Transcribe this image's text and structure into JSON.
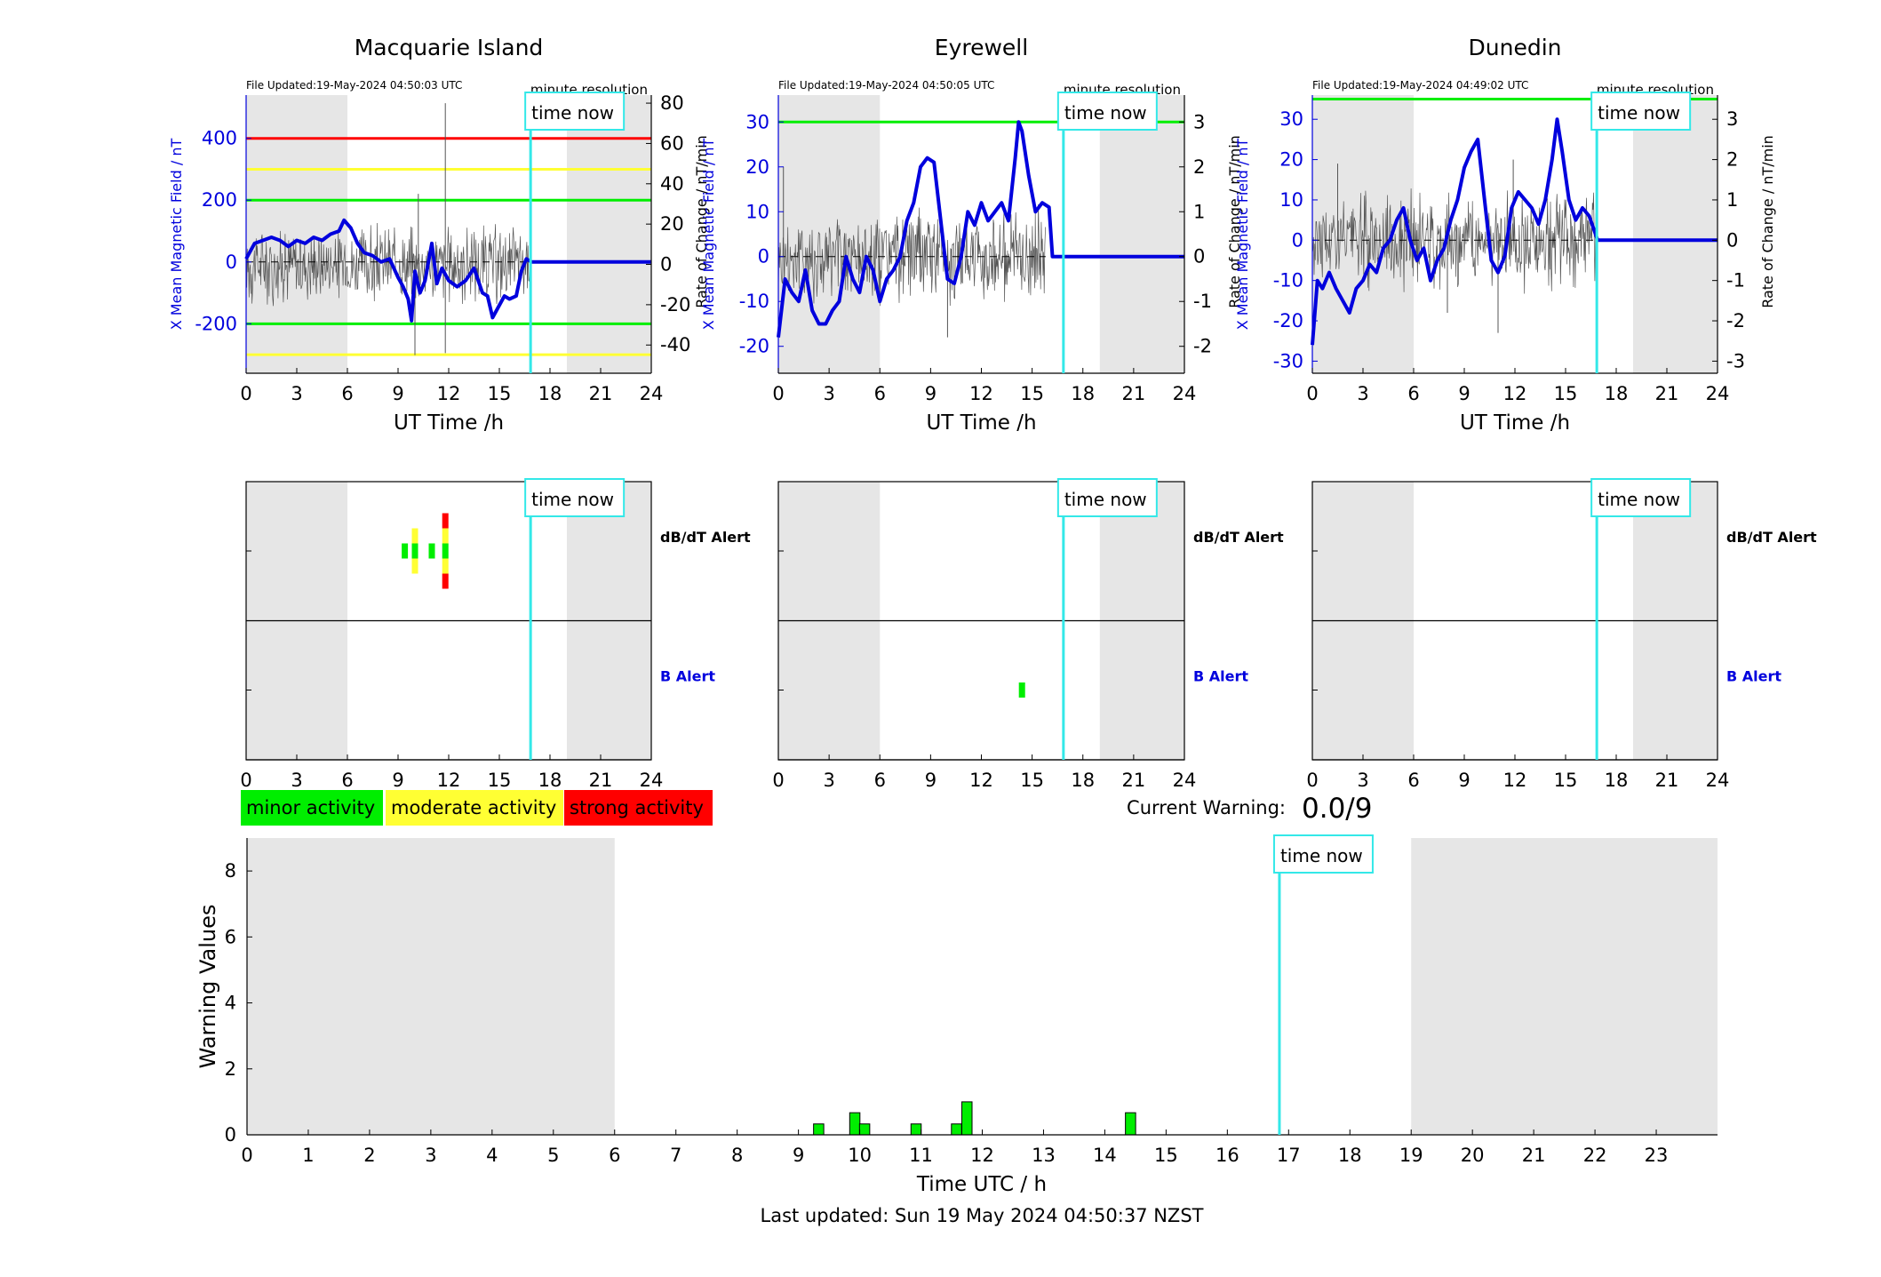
{
  "colors": {
    "blue": "#0000dd",
    "cyan": "#33e8e8",
    "green": "#00ee00",
    "yellow": "#ffff33",
    "red": "#ff0000",
    "night": "#e6e6e6",
    "derivative": "#555555"
  },
  "shared": {
    "file_updated_prefix": "File Updated:",
    "resolution_label": "minute resolution",
    "time_now_label": "time now",
    "ut_xlabel": "UT Time /h",
    "left_ylabel": "X Mean Magnetic Field / nT",
    "right_ylabel": "Rate of Change / nT/min",
    "dbdt_alert_label": "dB/dT Alert",
    "b_alert_label": "B Alert",
    "x_ticks": [
      0,
      3,
      6,
      9,
      12,
      15,
      18,
      21,
      24
    ],
    "night_bands": [
      [
        0,
        6
      ],
      [
        19,
        24
      ]
    ],
    "time_now_hour": 16.85
  },
  "legend": {
    "minor": "minor activity",
    "moderate": "moderate activity",
    "strong": "strong activity"
  },
  "current_warning": {
    "label": "Current Warning:",
    "value": "0.0/9"
  },
  "footer": {
    "last_updated": "Last updated: Sun 19 May 2024 04:50:37 NZST"
  },
  "chart_data": [
    {
      "type": "line",
      "title": "Macquarie Island",
      "file_updated": "19-May-2024 04:50:03 UTC",
      "xlabel": "UT Time /h",
      "ylabel": "X Mean Magnetic Field / nT",
      "ylabel_right": "Rate of Change / nT/min",
      "xlim": [
        0,
        24
      ],
      "ylim": [
        -360,
        540
      ],
      "yticks": [
        -200,
        0,
        200,
        400
      ],
      "ylim_right": [
        -54,
        84
      ],
      "yticks_right": [
        -40,
        -20,
        0,
        20,
        40,
        60,
        80
      ],
      "threshold_lines": [
        {
          "value": 400,
          "color": "red"
        },
        {
          "value": 300,
          "color": "yellow"
        },
        {
          "value": 200,
          "color": "green"
        },
        {
          "value": -200,
          "color": "green"
        },
        {
          "value": -300,
          "color": "yellow"
        }
      ],
      "x_field": {
        "x": [
          0,
          0.5,
          1,
          1.5,
          2,
          2.5,
          3,
          3.5,
          4,
          4.5,
          5,
          5.5,
          5.8,
          6.2,
          6.6,
          7,
          7.5,
          8,
          8.5,
          9,
          9.3,
          9.6,
          9.8,
          10,
          10.3,
          10.6,
          11,
          11.3,
          11.6,
          12,
          12.5,
          13,
          13.5,
          14,
          14.3,
          14.6,
          15,
          15.3,
          15.6,
          16,
          16.3,
          16.6,
          16.9,
          24
        ],
        "y": [
          10,
          60,
          70,
          80,
          70,
          50,
          70,
          60,
          80,
          70,
          90,
          100,
          135,
          110,
          60,
          30,
          20,
          0,
          10,
          -50,
          -80,
          -120,
          -190,
          -30,
          -100,
          -60,
          60,
          -70,
          -20,
          -60,
          -80,
          -60,
          -20,
          -100,
          -110,
          -180,
          -140,
          -110,
          -120,
          -110,
          -30,
          10,
          0,
          0
        ]
      },
      "rate_of_change": {
        "x": [
          0,
          16.9
        ],
        "y_band": [
          -15,
          15
        ],
        "spikes": [
          [
            10,
            -45
          ],
          [
            10.2,
            35
          ],
          [
            11.8,
            80
          ],
          [
            11.8,
            -44
          ]
        ]
      },
      "dbdt_alert": [
        {
          "hour": 9.4,
          "levels": [
            "green"
          ]
        },
        {
          "hour": 10.0,
          "levels": [
            "yellow",
            "green",
            "yellow"
          ]
        },
        {
          "hour": 11.0,
          "levels": [
            "green"
          ]
        },
        {
          "hour": 11.8,
          "levels": [
            "red",
            "yellow",
            "green",
            "yellow",
            "red"
          ]
        }
      ],
      "b_alert": []
    },
    {
      "type": "line",
      "title": "Eyrewell",
      "file_updated": "19-May-2024 04:50:05 UTC",
      "xlabel": "UT Time /h",
      "ylabel": "X Mean Magnetic Field / nT",
      "ylabel_right": "Rate of Change / nT/min",
      "xlim": [
        0,
        24
      ],
      "ylim": [
        -26,
        36
      ],
      "yticks": [
        -20,
        -10,
        0,
        10,
        20,
        30
      ],
      "ylim_right": [
        -2.6,
        3.6
      ],
      "yticks_right": [
        -2,
        -1,
        0,
        1,
        2,
        3
      ],
      "threshold_lines": [
        {
          "value": 30,
          "color": "green"
        }
      ],
      "x_field": {
        "x": [
          0,
          0.4,
          0.8,
          1.2,
          1.6,
          2,
          2.4,
          2.8,
          3.2,
          3.6,
          4,
          4.4,
          4.8,
          5.2,
          5.6,
          6,
          6.4,
          6.8,
          7.2,
          7.6,
          8,
          8.4,
          8.8,
          9.2,
          9.6,
          10,
          10.4,
          10.8,
          11.2,
          11.6,
          12,
          12.4,
          12.8,
          13.2,
          13.6,
          14,
          14.2,
          14.4,
          14.8,
          15.2,
          15.6,
          16,
          16.2,
          16.9,
          24
        ],
        "y": [
          -18,
          -5,
          -8,
          -10,
          -3,
          -12,
          -15,
          -15,
          -12,
          -10,
          0,
          -5,
          -8,
          0,
          -3,
          -10,
          -5,
          -3,
          0,
          8,
          12,
          20,
          22,
          21,
          8,
          -5,
          -6,
          0,
          10,
          7,
          12,
          8,
          10,
          12,
          8,
          22,
          30,
          28,
          18,
          10,
          12,
          11,
          0,
          0,
          0
        ]
      },
      "rate_of_change": {
        "x": [
          0,
          15.8
        ],
        "y_band": [
          -0.8,
          0.8
        ],
        "spikes": [
          [
            0.3,
            2
          ],
          [
            10,
            -1.8
          ]
        ]
      },
      "dbdt_alert": [],
      "b_alert": [
        {
          "hour": 14.4,
          "levels": [
            "green"
          ]
        }
      ]
    },
    {
      "type": "line",
      "title": "Dunedin",
      "file_updated": "19-May-2024 04:49:02 UTC",
      "xlabel": "UT Time /h",
      "ylabel": "X Mean Magnetic Field / nT",
      "ylabel_right": "Rate of Change / nT/min",
      "xlim": [
        0,
        24
      ],
      "ylim": [
        -33,
        36
      ],
      "yticks": [
        -30,
        -20,
        -10,
        0,
        10,
        20,
        30
      ],
      "ylim_right": [
        -3.3,
        3.6
      ],
      "yticks_right": [
        -3,
        -2,
        -1,
        0,
        1,
        2,
        3
      ],
      "threshold_lines": [
        {
          "value": 35,
          "color": "green"
        }
      ],
      "x_field": {
        "x": [
          0,
          0.3,
          0.6,
          1,
          1.4,
          1.8,
          2.2,
          2.6,
          3,
          3.4,
          3.8,
          4.2,
          4.6,
          5,
          5.4,
          5.8,
          6.2,
          6.6,
          7,
          7.4,
          7.8,
          8.2,
          8.6,
          9,
          9.4,
          9.8,
          10.2,
          10.6,
          11,
          11.4,
          11.8,
          12.2,
          12.6,
          13,
          13.4,
          13.8,
          14.2,
          14.5,
          14.8,
          15.2,
          15.6,
          16,
          16.4,
          16.9,
          24
        ],
        "y": [
          -26,
          -10,
          -12,
          -8,
          -12,
          -15,
          -18,
          -12,
          -10,
          -6,
          -8,
          -2,
          0,
          5,
          8,
          0,
          -5,
          -2,
          -10,
          -5,
          -2,
          5,
          10,
          18,
          22,
          25,
          10,
          -5,
          -8,
          -4,
          8,
          12,
          10,
          8,
          4,
          10,
          20,
          30,
          22,
          10,
          5,
          8,
          6,
          0,
          0
        ]
      },
      "rate_of_change": {
        "x": [
          0,
          16.9
        ],
        "y_band": [
          -0.9,
          0.9
        ],
        "spikes": [
          [
            1.5,
            1.9
          ],
          [
            8,
            -1.8
          ],
          [
            11,
            -2.3
          ],
          [
            11.9,
            2
          ]
        ]
      },
      "dbdt_alert": [],
      "b_alert": []
    },
    {
      "type": "bar",
      "xlabel": "Time UTC / h",
      "ylabel": "Warning Values",
      "xlim": [
        0,
        24
      ],
      "ylim": [
        0,
        9
      ],
      "yticks": [
        0,
        2,
        4,
        6,
        8
      ],
      "x_ticks": [
        0,
        1,
        2,
        3,
        4,
        5,
        6,
        7,
        8,
        9,
        10,
        11,
        12,
        13,
        14,
        15,
        16,
        17,
        18,
        19,
        20,
        21,
        22,
        23
      ],
      "night_bands": [
        [
          0,
          6
        ],
        [
          19,
          24
        ]
      ],
      "time_now_hour": 16.85,
      "bars": {
        "x": [
          9.33,
          9.92,
          10.08,
          10.92,
          11.58,
          11.75,
          14.42
        ],
        "y": [
          0.33,
          0.67,
          0.33,
          0.33,
          0.33,
          1.0,
          0.67
        ]
      }
    }
  ]
}
